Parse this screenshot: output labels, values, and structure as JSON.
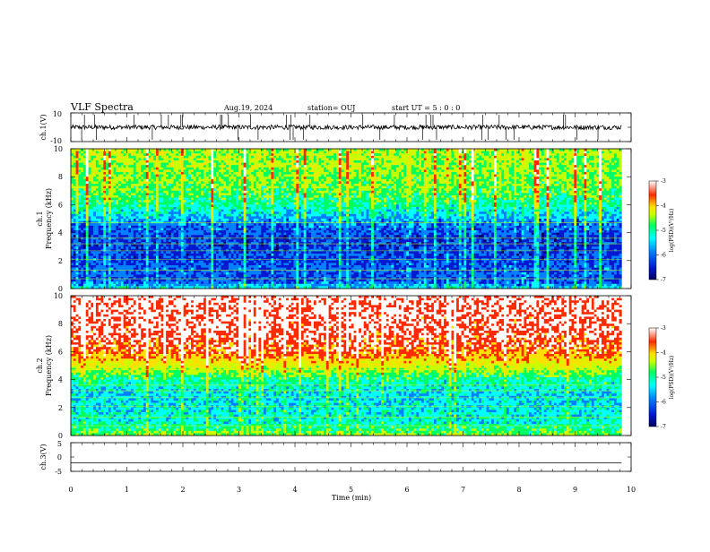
{
  "header": {
    "title": "VLF Spectra",
    "date": "Aug.19, 2024",
    "station": "station= OUJ",
    "start_ut": "start  UT =   5  : 0  : 0"
  },
  "colors": {
    "colormap": [
      "#000060",
      "#0018d0",
      "#0080ff",
      "#00ffff",
      "#00ff60",
      "#c8ff00",
      "#ffe000",
      "#ff2a00",
      "#ffffff"
    ]
  },
  "chart_data": [
    {
      "id": "ch1-waveform",
      "type": "line",
      "ylabel": "ch.1(V)",
      "ylim": [
        -10,
        10
      ],
      "y_ticks": [
        "10",
        "-10"
      ],
      "baseline": 0,
      "grid": false
    },
    {
      "id": "ch1-spectrogram",
      "type": "heatmap",
      "ylabel": "ch.1",
      "ylabel2": "Frequency (kHz)",
      "ylim": [
        0,
        10
      ],
      "y_ticks": [
        "0",
        "2",
        "4",
        "6",
        "8",
        "10"
      ],
      "colorbar": {
        "label": "log(PSD)(V²/Hz)",
        "ticks": [
          "-3",
          "-4",
          "-5",
          "-6",
          "-7"
        ],
        "range": [
          -7,
          -3
        ]
      },
      "profile": [
        {
          "f": 0.0,
          "v": -5.5
        },
        {
          "f": 0.5,
          "v": -6.3
        },
        {
          "f": 1.5,
          "v": -6.3
        },
        {
          "f": 3.5,
          "v": -6.5
        },
        {
          "f": 4.5,
          "v": -6.2
        },
        {
          "f": 5.0,
          "v": -5.9
        },
        {
          "f": 6.0,
          "v": -5.3
        },
        {
          "f": 7.5,
          "v": -4.9
        },
        {
          "f": 10.0,
          "v": -4.7
        }
      ]
    },
    {
      "id": "ch2-spectrogram",
      "type": "heatmap",
      "ylabel": "ch.2",
      "ylabel2": "Frequency (kHz)",
      "ylim": [
        0,
        10
      ],
      "y_ticks": [
        "0",
        "2",
        "4",
        "6",
        "8",
        "10"
      ],
      "colorbar": {
        "label": "log(PSD)(V²/Hz)",
        "ticks": [
          "-3",
          "-4",
          "-5",
          "-6",
          "-7"
        ],
        "range": [
          -7,
          -3
        ]
      },
      "profile": [
        {
          "f": 0.0,
          "v": -4.8
        },
        {
          "f": 1.0,
          "v": -5.5
        },
        {
          "f": 3.0,
          "v": -5.7
        },
        {
          "f": 4.0,
          "v": -5.3
        },
        {
          "f": 5.0,
          "v": -4.4
        },
        {
          "f": 6.0,
          "v": -3.7
        },
        {
          "f": 7.5,
          "v": -3.4
        },
        {
          "f": 10.0,
          "v": -3.3
        }
      ]
    },
    {
      "id": "ch3-waveform",
      "type": "line",
      "ylabel": "ch.3(V)",
      "ylim": [
        -5,
        5
      ],
      "y_ticks": [
        "5",
        "0",
        "-5"
      ],
      "baseline": -2.0,
      "grid": false
    }
  ],
  "x_axis": {
    "label": "Time  (min)",
    "xlim": [
      0,
      10
    ],
    "ticks": [
      "0",
      "1",
      "2",
      "3",
      "4",
      "5",
      "6",
      "7",
      "8",
      "9",
      "10"
    ],
    "data_end": 9.83
  }
}
